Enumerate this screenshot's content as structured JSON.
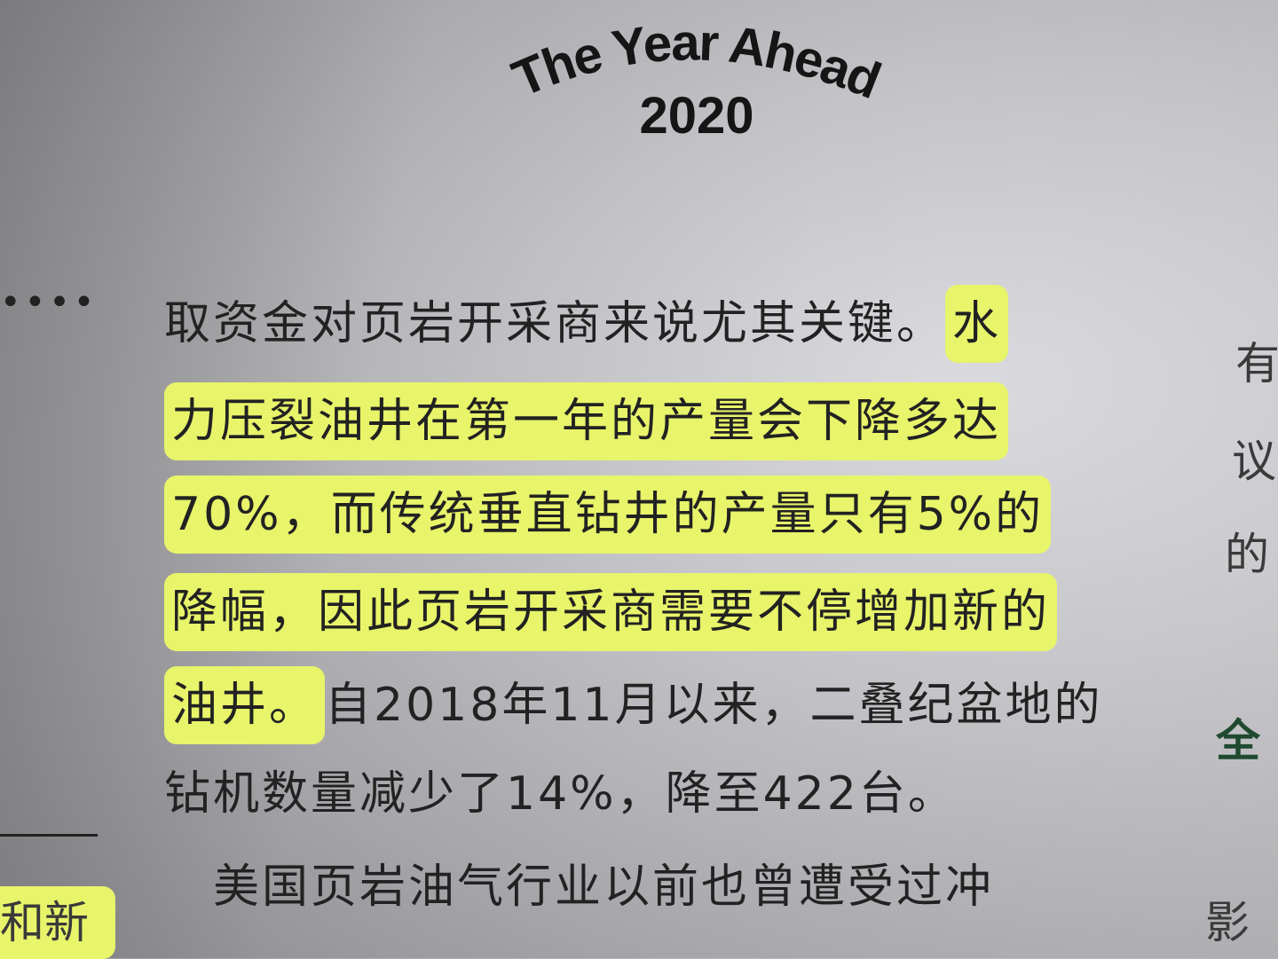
{
  "header": {
    "title": "The Year Ahead",
    "year": "2020"
  },
  "left_margin": {
    "dots": "••••",
    "fragment": "和新"
  },
  "body": {
    "lines": [
      {
        "plain": "取资金对页岩开采商来说尤其关键。",
        "highlight": "水"
      },
      {
        "plain": "",
        "highlight": "力压裂油井在第一年的产量会下降多达"
      },
      {
        "plain": "",
        "highlight": "70%，而传统垂直钻井的产量只有5%的"
      },
      {
        "plain": "",
        "highlight": "降幅，因此页岩开采商需要不停增加新的"
      },
      {
        "highlight": "油井。",
        "plain": "自2018年11月以来，二叠纪盆地的"
      },
      {
        "plain": "钻机数量减少了14%，降至422台。"
      },
      {
        "plain": "　美国页岩油气行业以前也曾遭受过冲"
      }
    ]
  },
  "right_margin": {
    "chars": [
      "有",
      "议",
      "的",
      "全",
      "影"
    ]
  },
  "colors": {
    "highlight": "#e8f46a",
    "heading_green": "#1f4a30"
  }
}
